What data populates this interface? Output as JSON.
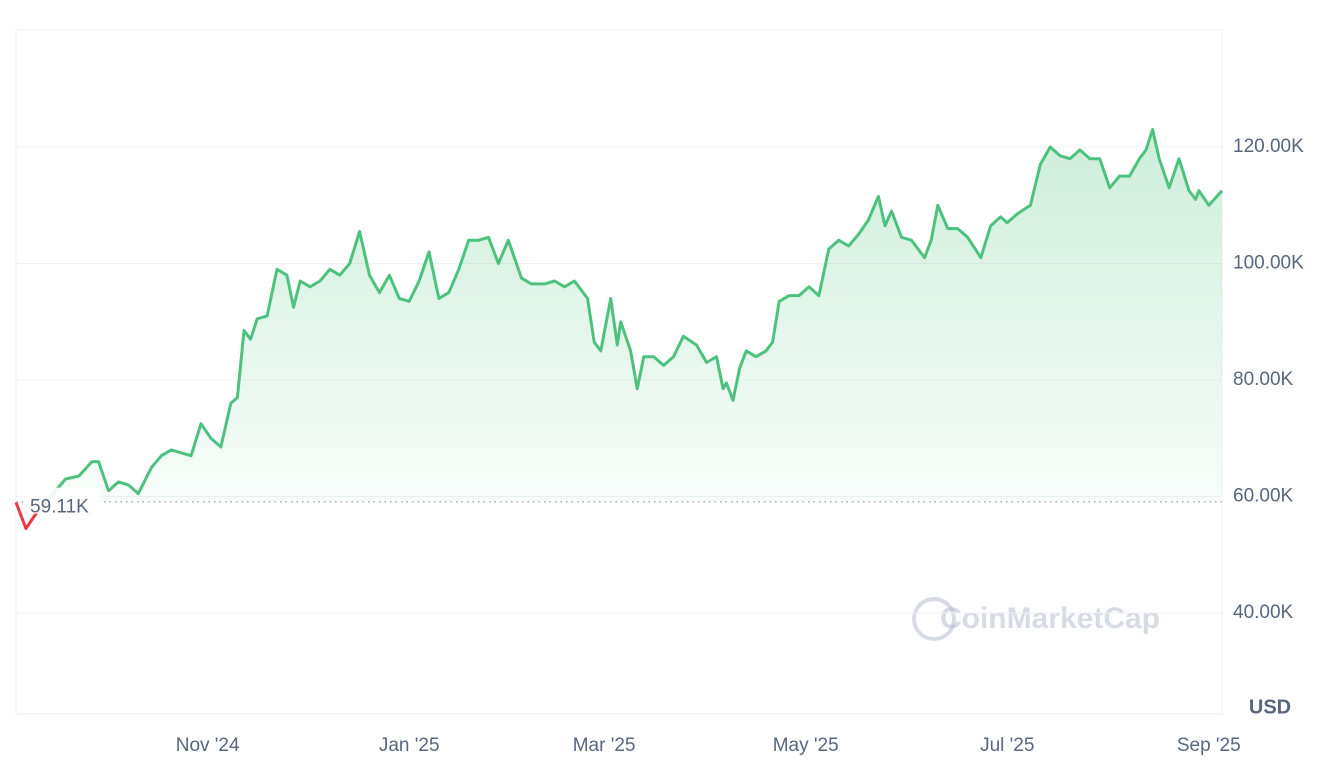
{
  "chart_data": {
    "type": "line",
    "currency": "USD",
    "watermark": "CoinMarketCap",
    "color": "#4dc27e",
    "down_color": "#ea3943",
    "baseline": {
      "value": 59110,
      "label": "59.11K"
    },
    "xlim": [
      0,
      365
    ],
    "xticks": [
      {
        "value": 58,
        "label": "Nov '24"
      },
      {
        "value": 119,
        "label": "Jan '25"
      },
      {
        "value": 178,
        "label": "Mar '25"
      },
      {
        "value": 239,
        "label": "May '25"
      },
      {
        "value": 300,
        "label": "Jul '25"
      },
      {
        "value": 361,
        "label": "Sep '25"
      }
    ],
    "ylim": [
      22660,
      140090
    ],
    "yticks": [
      {
        "value": 40000,
        "label": "40.00K"
      },
      {
        "value": 60000,
        "label": "60.00K"
      },
      {
        "value": 80000,
        "label": "80.00K"
      },
      {
        "value": 100000,
        "label": "100.00K"
      },
      {
        "value": 120000,
        "label": "120.00K"
      }
    ],
    "grid": true,
    "x": [
      0,
      3,
      6,
      15,
      19,
      23,
      25,
      28,
      31,
      34,
      37,
      41,
      44,
      47,
      50,
      53,
      56,
      59,
      62,
      65,
      67,
      69,
      71,
      73,
      76,
      79,
      82,
      84,
      86,
      89,
      92,
      95,
      98,
      101,
      104,
      107,
      110,
      113,
      116,
      119,
      122,
      125,
      128,
      131,
      134,
      137,
      140,
      143,
      146,
      149,
      153,
      156,
      160,
      163,
      166,
      169,
      173,
      175,
      177,
      180,
      182,
      183,
      186,
      188,
      190,
      193,
      196,
      199,
      202,
      206,
      209,
      212,
      214,
      215,
      217,
      219,
      221,
      224,
      227,
      229,
      231,
      234,
      237,
      240,
      243,
      246,
      249,
      252,
      255,
      258,
      261,
      263,
      265,
      268,
      271,
      275,
      277,
      279,
      282,
      285,
      288,
      292,
      295,
      298,
      300,
      303,
      307,
      310,
      313,
      316,
      319,
      322,
      325,
      328,
      331,
      334,
      337,
      340,
      342,
      344,
      346,
      349,
      352,
      355,
      357,
      358,
      361,
      365
    ],
    "values": [
      59000,
      54500,
      57000,
      63000,
      63500,
      66000,
      66000,
      61000,
      62500,
      62000,
      60500,
      65000,
      67000,
      68000,
      67500,
      67000,
      72500,
      70000,
      68500,
      76000,
      77000,
      88500,
      87000,
      90500,
      91000,
      99000,
      98000,
      92500,
      97000,
      96000,
      97000,
      99000,
      98000,
      100000,
      105500,
      98000,
      95000,
      98000,
      94000,
      93500,
      97000,
      102000,
      94000,
      95000,
      99000,
      104000,
      104000,
      104500,
      100000,
      104000,
      97500,
      96500,
      96500,
      97000,
      96000,
      97000,
      94000,
      86500,
      85000,
      94000,
      86000,
      90000,
      85000,
      78500,
      84000,
      84000,
      82500,
      84000,
      87500,
      86000,
      83000,
      84000,
      78500,
      79500,
      76500,
      82000,
      85000,
      84000,
      85000,
      86500,
      93500,
      94500,
      94500,
      96000,
      94500,
      102500,
      104000,
      103000,
      105000,
      107500,
      111500,
      106500,
      109000,
      104500,
      104000,
      101000,
      104000,
      110000,
      106000,
      106000,
      104500,
      101000,
      106500,
      108000,
      107000,
      108500,
      110000,
      117000,
      120000,
      118500,
      118000,
      119500,
      118000,
      118000,
      113000,
      115000,
      115000,
      118000,
      119500,
      123000,
      118000,
      113000,
      118000,
      112500,
      111000,
      112500,
      110000,
      112500
    ]
  }
}
